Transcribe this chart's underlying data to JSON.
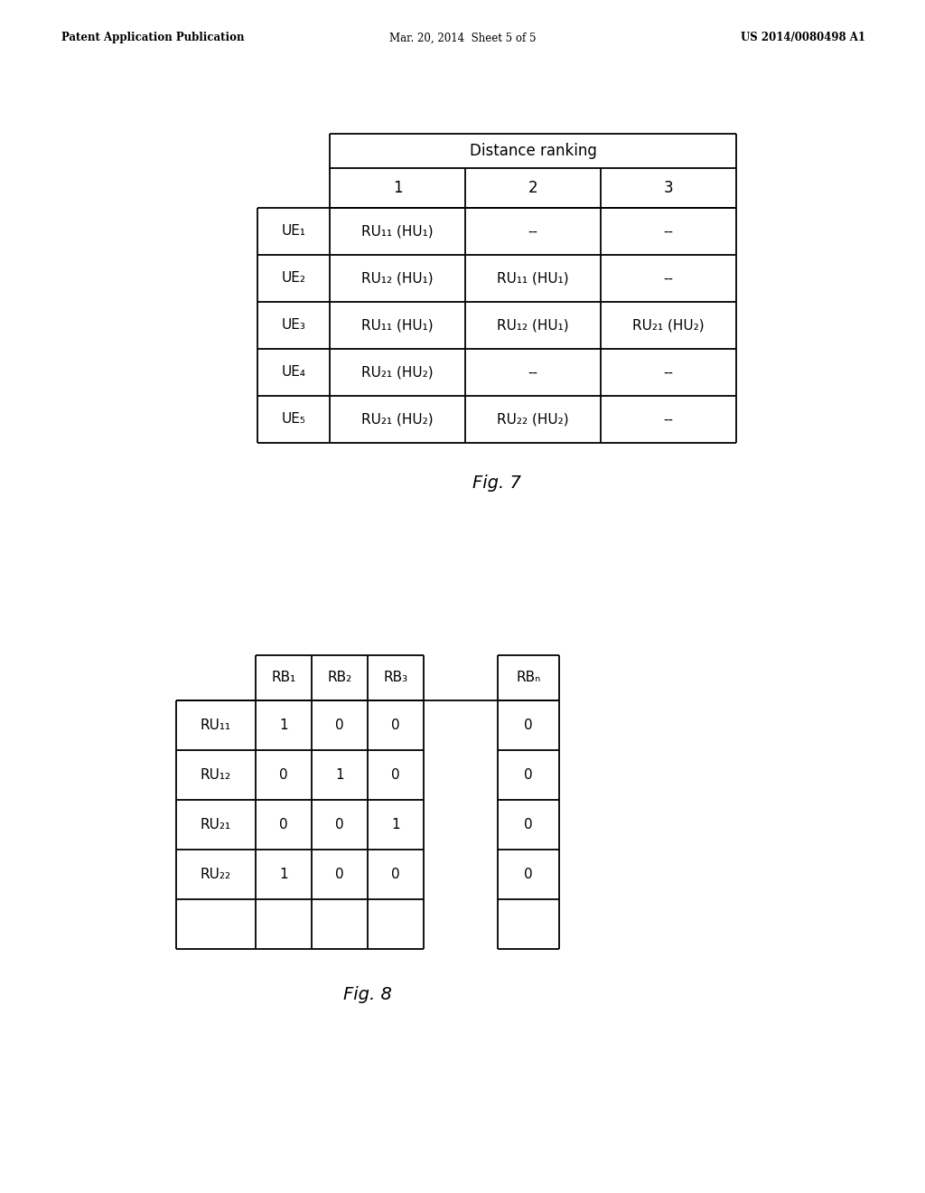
{
  "header_text": {
    "left": "Patent Application Publication",
    "center": "Mar. 20, 2014  Sheet 5 of 5",
    "right": "US 2014/0080498 A1"
  },
  "fig7": {
    "caption": "Fig. 7",
    "title": "Distance ranking",
    "col_headers": [
      "1",
      "2",
      "3"
    ],
    "row_headers": [
      "UE₁",
      "UE₂",
      "UE₃",
      "UE₄",
      "UE₅"
    ],
    "cells": [
      [
        "RU₁₁ (HU₁)",
        "--",
        "--"
      ],
      [
        "RU₁₂ (HU₁)",
        "RU₁₁ (HU₁)",
        "--"
      ],
      [
        "RU₁₁ (HU₁)",
        "RU₁₂ (HU₁)",
        "RU₂₁ (HU₂)"
      ],
      [
        "RU₂₁ (HU₂)",
        "--",
        "--"
      ],
      [
        "RU₂₁ (HU₂)",
        "RU₂₂ (HU₂)",
        "--"
      ]
    ]
  },
  "fig8": {
    "caption": "Fig. 8",
    "col_headers": [
      "RB₁",
      "RB₂",
      "RB₃",
      "",
      "RBₙ"
    ],
    "row_headers": [
      "RU₁₁",
      "RU₁₂",
      "RU₂₁",
      "RU₂₂",
      ""
    ],
    "cells": [
      [
        "1",
        "0",
        "0",
        "",
        "0"
      ],
      [
        "0",
        "1",
        "0",
        "",
        "0"
      ],
      [
        "0",
        "0",
        "1",
        "",
        "0"
      ],
      [
        "1",
        "0",
        "0",
        "",
        "0"
      ],
      [
        "",
        "",
        "",
        "",
        ""
      ]
    ]
  },
  "background_color": "#ffffff",
  "text_color": "#000000",
  "line_color": "#000000"
}
